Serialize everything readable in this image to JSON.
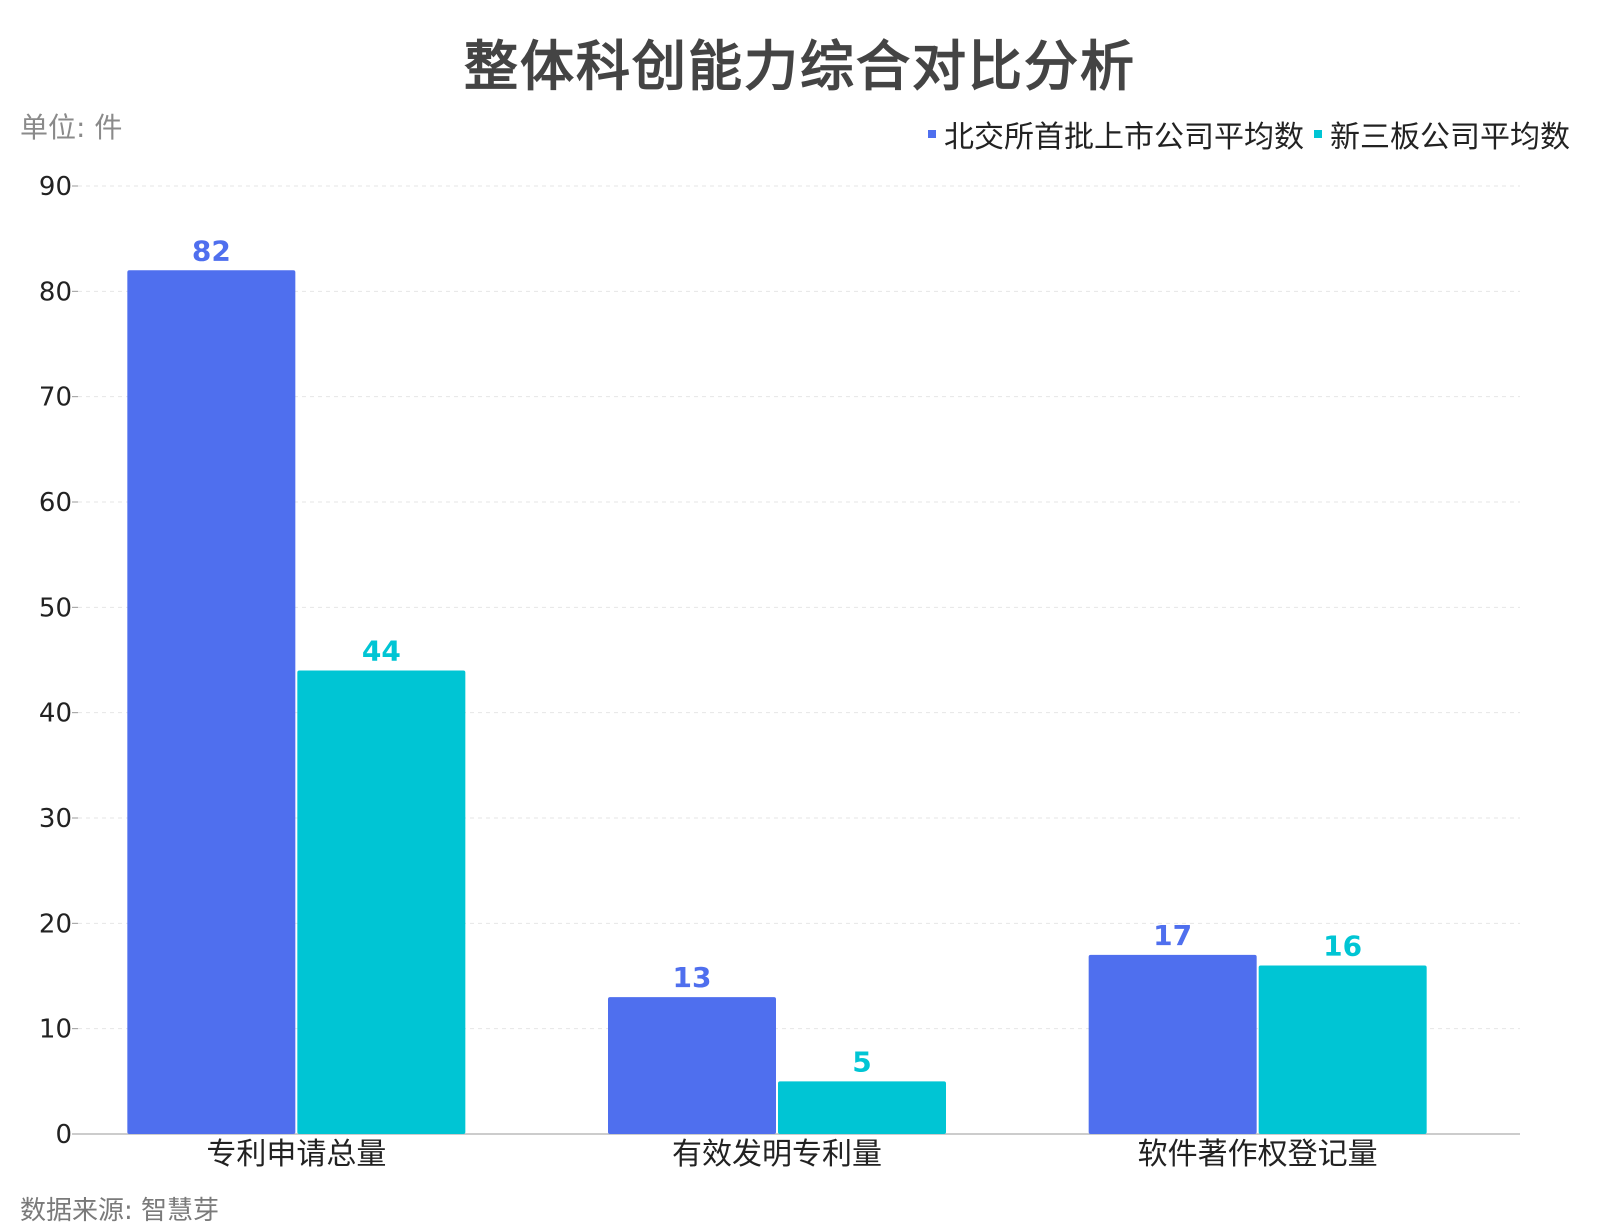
{
  "page": {
    "title": "整体科创能力综合对比分析",
    "unit": "单位: 件",
    "source": "数据来源: 智慧芽"
  },
  "chart_data": {
    "type": "bar",
    "title": "整体科创能力综合对比分析",
    "categories": [
      "专利申请总量",
      "有效发明专利量",
      "软件著作权登记量"
    ],
    "series": [
      {
        "name": "北交所首批上市公司平均数",
        "values": [
          82,
          13,
          17
        ],
        "color": "#4F6FEE"
      },
      {
        "name": "新三板公司平均数",
        "values": [
          44,
          5,
          16
        ],
        "color": "#00C5D4"
      }
    ],
    "ylim": [
      0,
      90
    ],
    "yticks": [
      0,
      10,
      20,
      30,
      40,
      50,
      60,
      70,
      80,
      90
    ],
    "grid": true,
    "legend_position": "top-right",
    "xlabel": "",
    "ylabel": ""
  }
}
